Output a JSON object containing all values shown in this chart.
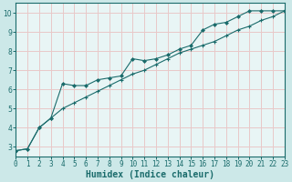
{
  "xlabel": "Humidex (Indice chaleur)",
  "bg_color": "#cce8e8",
  "plot_bg_color": "#e8f5f5",
  "grid_color": "#e8c8c8",
  "line_color": "#1a6b6b",
  "spine_color": "#1a6b6b",
  "x_data": [
    0,
    1,
    2,
    3,
    4,
    5,
    6,
    7,
    8,
    9,
    10,
    11,
    12,
    13,
    14,
    15,
    16,
    17,
    18,
    19,
    20,
    21,
    22,
    23
  ],
  "line1_y": [
    2.8,
    2.9,
    4.0,
    4.5,
    6.3,
    6.2,
    6.2,
    6.5,
    6.6,
    6.7,
    7.6,
    7.5,
    7.6,
    7.8,
    8.1,
    8.3,
    9.1,
    9.4,
    9.5,
    9.8,
    10.1,
    10.1,
    10.1,
    10.1
  ],
  "line2_y": [
    2.8,
    2.9,
    4.0,
    4.5,
    5.0,
    5.3,
    5.6,
    5.9,
    6.2,
    6.5,
    6.8,
    7.0,
    7.3,
    7.6,
    7.9,
    8.1,
    8.3,
    8.5,
    8.8,
    9.1,
    9.3,
    9.6,
    9.8,
    10.1
  ],
  "xlim": [
    0,
    23
  ],
  "ylim": [
    2.5,
    10.5
  ],
  "yticks": [
    3,
    4,
    5,
    6,
    7,
    8,
    9,
    10
  ],
  "xticks": [
    0,
    1,
    2,
    3,
    4,
    5,
    6,
    7,
    8,
    9,
    10,
    11,
    12,
    13,
    14,
    15,
    16,
    17,
    18,
    19,
    20,
    21,
    22,
    23
  ],
  "tick_fontsize": 5.5,
  "xlabel_fontsize": 7,
  "xlabel_fontweight": "bold"
}
